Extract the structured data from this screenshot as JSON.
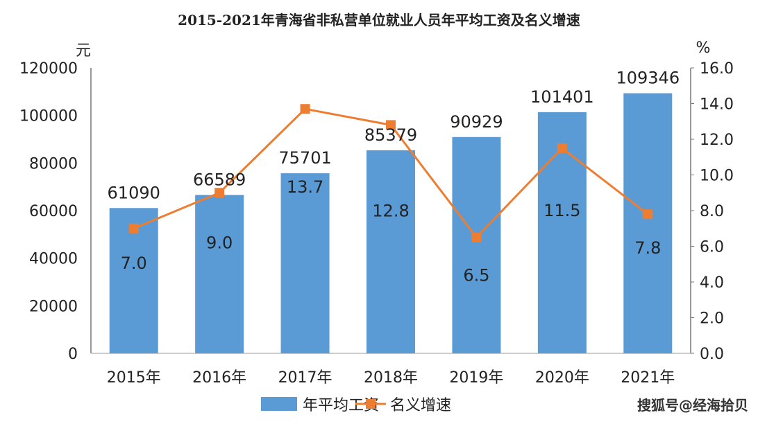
{
  "chart_data": {
    "type": "bar",
    "title": "2015-2021年青海省非私营单位就业人员年平均工资及名义增速",
    "categories": [
      "2015年",
      "2016年",
      "2017年",
      "2018年",
      "2019年",
      "2020年",
      "2021年"
    ],
    "series": [
      {
        "name": "年平均工资",
        "type": "bar",
        "axis": "left",
        "color": "#5b9bd5",
        "values": [
          61090,
          66589,
          75701,
          85379,
          90929,
          101401,
          109346
        ]
      },
      {
        "name": "名义增速",
        "type": "line",
        "axis": "right",
        "color": "#ed7d31",
        "values": [
          7.0,
          9.0,
          13.7,
          12.8,
          6.5,
          11.5,
          7.8
        ]
      }
    ],
    "y_left": {
      "unit": "元",
      "ylim": [
        0,
        120000
      ],
      "ticks": [
        "0",
        "20000",
        "40000",
        "60000",
        "80000",
        "100000",
        "120000"
      ]
    },
    "y_right": {
      "unit": "%",
      "ylim": [
        0,
        16
      ],
      "ticks": [
        "0.0",
        "2.0",
        "4.0",
        "6.0",
        "8.0",
        "10.0",
        "12.0",
        "14.0",
        "16.0"
      ]
    },
    "grid": false,
    "legend_position": "bottom"
  },
  "watermark": "搜狐号@经海拾贝"
}
